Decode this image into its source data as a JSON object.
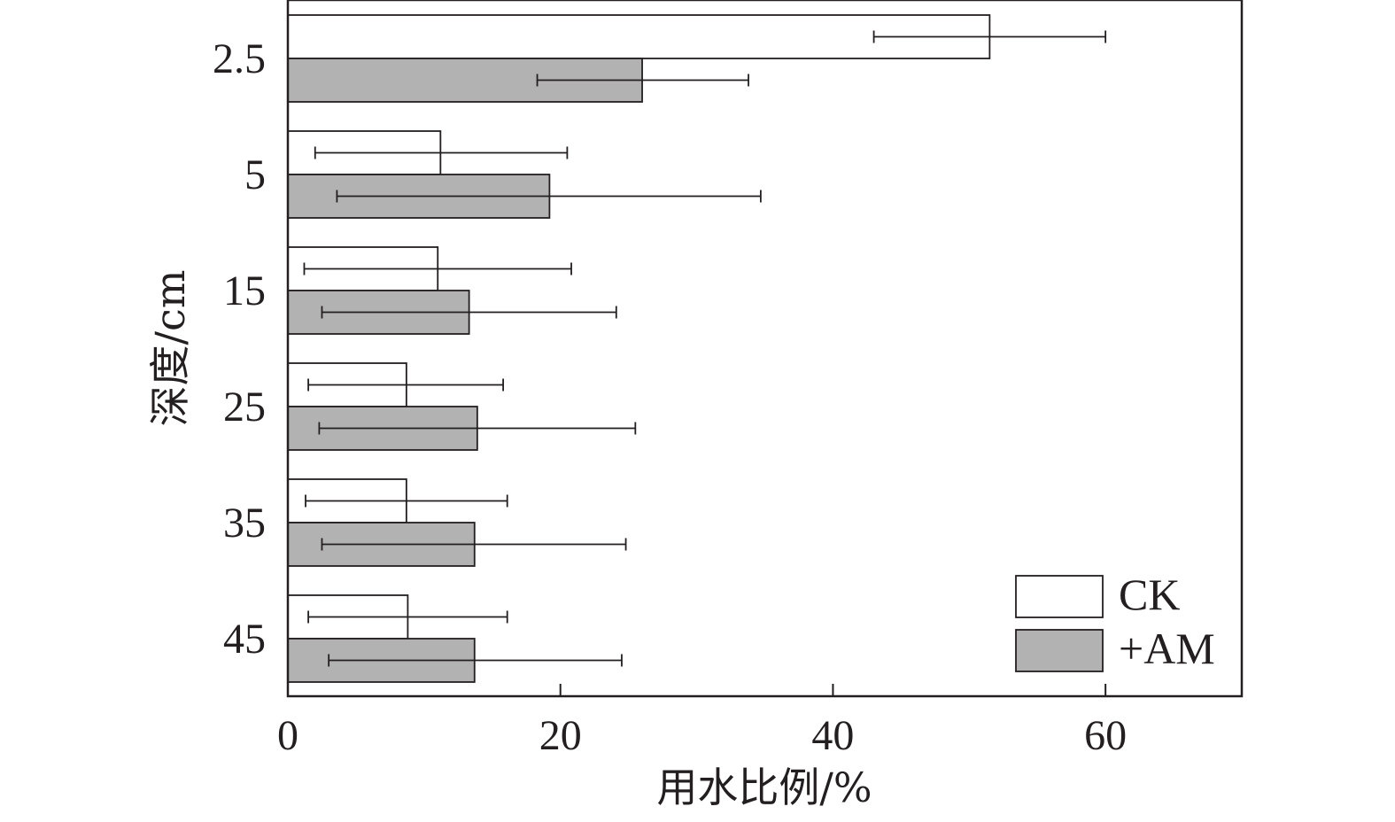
{
  "chart_data": {
    "type": "bar",
    "orientation": "horizontal",
    "categories": [
      "2.5",
      "5",
      "15",
      "25",
      "35",
      "45"
    ],
    "series": [
      {
        "name": "CK",
        "color": "#ffffff",
        "values": [
          51.5,
          11.2,
          11.0,
          8.7,
          8.7,
          8.8
        ],
        "error_low": [
          43.0,
          2.0,
          1.2,
          1.5,
          1.3,
          1.5
        ],
        "error_high": [
          60.0,
          20.5,
          20.8,
          15.8,
          16.1,
          16.1
        ]
      },
      {
        "name": "+AM",
        "color": "#b2b2b2",
        "values": [
          26.0,
          19.2,
          13.3,
          13.9,
          13.7,
          13.7
        ],
        "error_low": [
          18.3,
          3.6,
          2.5,
          2.3,
          2.5,
          3.0
        ],
        "error_high": [
          33.8,
          34.7,
          24.1,
          25.5,
          24.8,
          24.5
        ]
      }
    ],
    "xlabel": "用水比例/%",
    "ylabel": "深度/cm",
    "xlim": [
      0,
      70
    ],
    "xticks": [
      "0",
      "20",
      "40",
      "60"
    ],
    "grid": false,
    "legend_position": "bottom-right"
  }
}
